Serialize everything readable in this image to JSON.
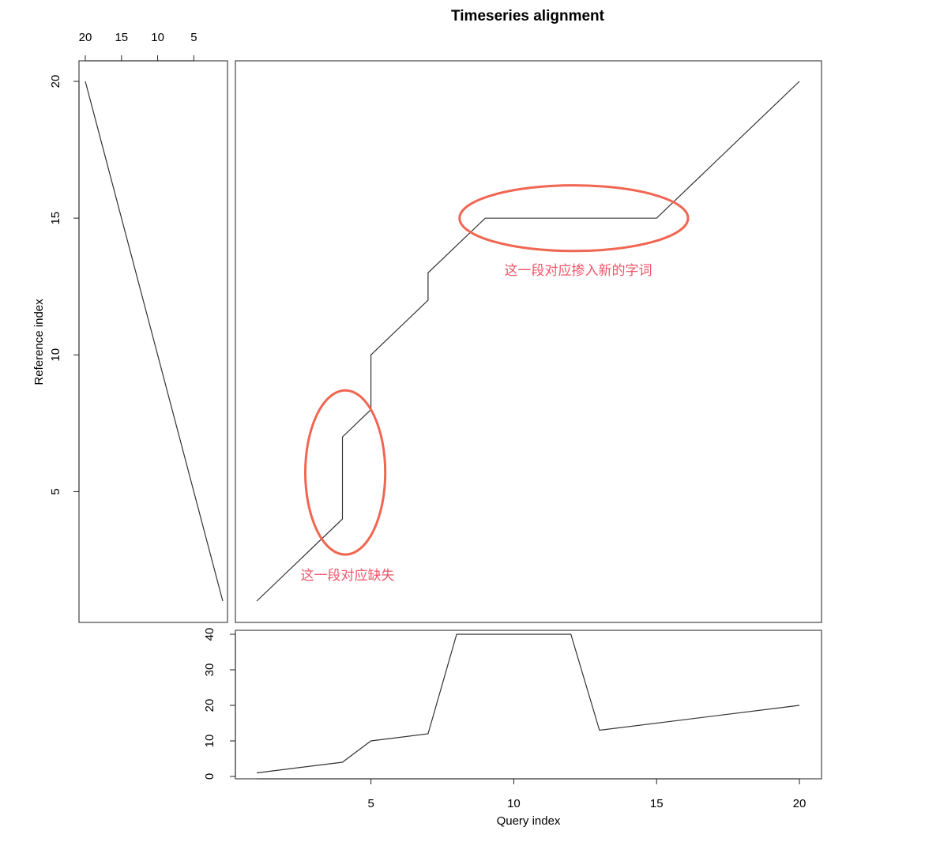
{
  "chart_data": {
    "title": "Timeseries alignment",
    "panels": [
      {
        "id": "main",
        "type": "line",
        "xlabel": "",
        "ylabel": "",
        "xlim": [
          1,
          20
        ],
        "ylim": [
          1,
          20
        ],
        "series": [
          {
            "points": [
              [
                1,
                1
              ],
              [
                4,
                4
              ],
              [
                4,
                7
              ],
              [
                5,
                8
              ],
              [
                5,
                10
              ],
              [
                7,
                12
              ],
              [
                7,
                13
              ],
              [
                9,
                15
              ],
              [
                15,
                15
              ],
              [
                20,
                20
              ]
            ]
          }
        ],
        "annotations": [
          {
            "text": "这一段对应缺失",
            "shape": "ellipse",
            "center": [
              4.1,
              5.7
            ],
            "radius": [
              1.4,
              3.0
            ]
          },
          {
            "text": "这一段对应掺入新的字词",
            "shape": "ellipse",
            "center": [
              12.1,
              15.0
            ],
            "radius": [
              4.0,
              1.2
            ]
          }
        ]
      },
      {
        "id": "reference",
        "type": "line",
        "ylabel": "Reference index",
        "xticks": [
          20,
          15,
          10,
          5
        ],
        "yticks": [
          5,
          10,
          15,
          20
        ],
        "xlim": [
          20,
          1
        ],
        "ylim": [
          1,
          20
        ],
        "series": [
          {
            "points": [
              [
                20,
                20
              ],
              [
                1,
                1
              ]
            ]
          }
        ]
      },
      {
        "id": "query",
        "type": "line",
        "xlabel": "Query index",
        "xticks": [
          5,
          10,
          15,
          20
        ],
        "yticks": [
          0,
          10,
          20,
          30,
          40
        ],
        "xlim": [
          1,
          20
        ],
        "ylim": [
          0,
          40
        ],
        "series": [
          {
            "points": [
              [
                1,
                1
              ],
              [
                4,
                4
              ],
              [
                5,
                10
              ],
              [
                7,
                12
              ],
              [
                8,
                40
              ],
              [
                12,
                40
              ],
              [
                13,
                13
              ],
              [
                20,
                20
              ]
            ]
          }
        ]
      }
    ]
  }
}
